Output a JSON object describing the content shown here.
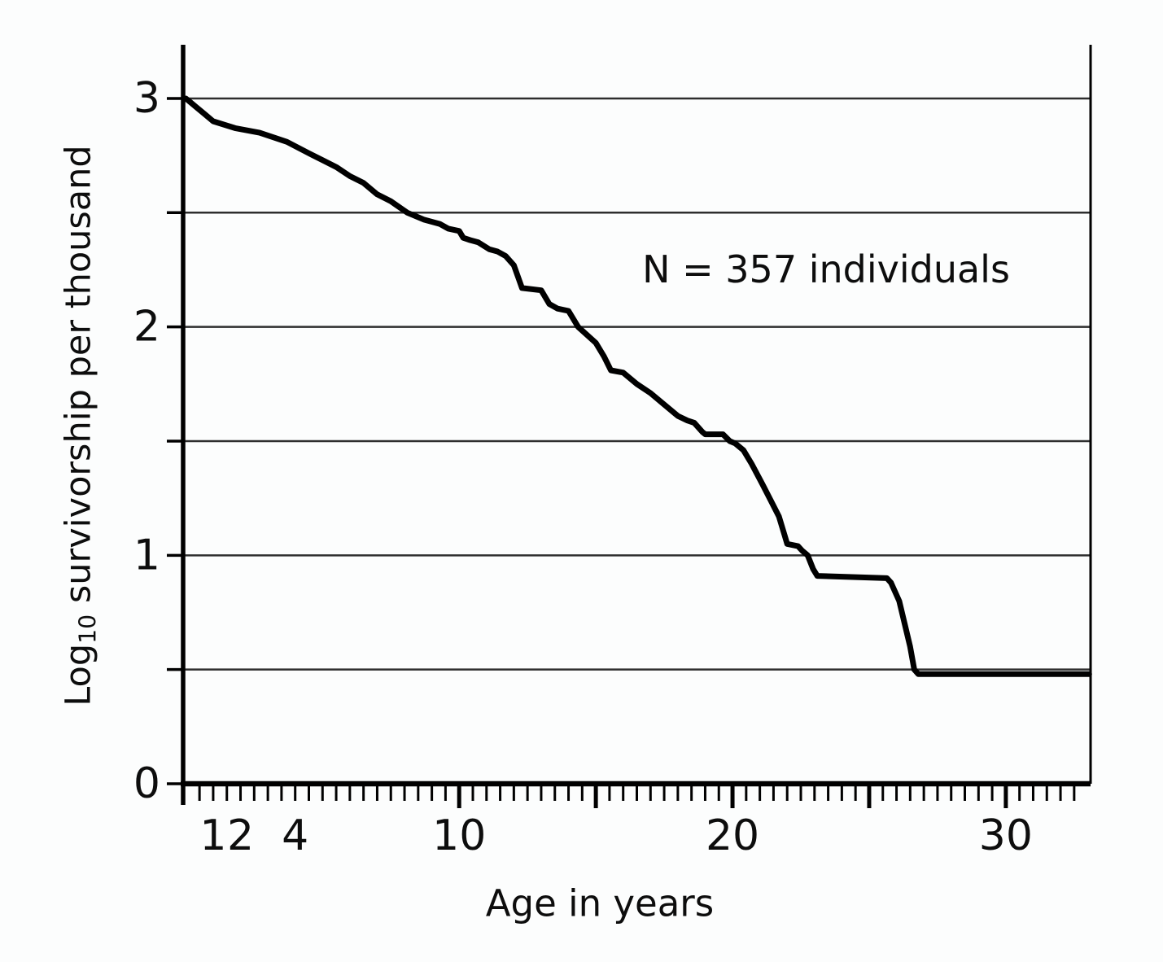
{
  "figure": {
    "background": "#fcfdfd",
    "annotation": "N = 357 individuals",
    "xlabel": "Age in years",
    "ylabel_parts": {
      "prefix": "Log",
      "sub": "10",
      "suffix": " survivorship per thousand"
    }
  },
  "chart_data": {
    "type": "line",
    "title": "",
    "xlabel": "Age in years",
    "ylabel": "Log10 survivorship per thousand",
    "annotation": "N = 357 individuals",
    "legend": "none",
    "grid": "horizontal gridlines every 0.5",
    "line_color": "#000000",
    "grid_color": "#2e2e2e",
    "xlim": [
      -0.1,
      33.1
    ],
    "ylim": [
      0,
      3.235
    ],
    "x_ticks_labeled": [
      1,
      2,
      4,
      10,
      20,
      30
    ],
    "x_major_ticks": [
      10,
      15,
      20,
      25,
      30
    ],
    "x_minor_tick_step": 0.5,
    "x_minor_tick_max": 32.5,
    "y_tick_labels": [
      0,
      1,
      2,
      3
    ],
    "y_tick_values": [
      0,
      0.5,
      1,
      1.5,
      2,
      2.5,
      3
    ],
    "y_gridlines": [
      0.5,
      1,
      1.5,
      2,
      2.5,
      3
    ],
    "series": [
      {
        "name": "Log10 survivorship per thousand",
        "points": [
          [
            0,
            3.0
          ],
          [
            0.2,
            2.98
          ],
          [
            0.4,
            2.96
          ],
          [
            0.7,
            2.93
          ],
          [
            1,
            2.9
          ],
          [
            1.8,
            2.87
          ],
          [
            2.7,
            2.85
          ],
          [
            3.2,
            2.83
          ],
          [
            3.7,
            2.81
          ],
          [
            4.5,
            2.76
          ],
          [
            5,
            2.73
          ],
          [
            5.5,
            2.7
          ],
          [
            6,
            2.66
          ],
          [
            6.5,
            2.63
          ],
          [
            7,
            2.58
          ],
          [
            7.5,
            2.55
          ],
          [
            8.1,
            2.5
          ],
          [
            8.7,
            2.47
          ],
          [
            9.3,
            2.45
          ],
          [
            9.6,
            2.43
          ],
          [
            10,
            2.42
          ],
          [
            10.15,
            2.39
          ],
          [
            10.4,
            2.38
          ],
          [
            10.7,
            2.37
          ],
          [
            11.1,
            2.34
          ],
          [
            11.4,
            2.33
          ],
          [
            11.7,
            2.31
          ],
          [
            12,
            2.27
          ],
          [
            12.3,
            2.17
          ],
          [
            13,
            2.16
          ],
          [
            13.3,
            2.1
          ],
          [
            13.6,
            2.08
          ],
          [
            14,
            2.07
          ],
          [
            14.35,
            2.0
          ],
          [
            15,
            1.93
          ],
          [
            15.3,
            1.87
          ],
          [
            15.55,
            1.81
          ],
          [
            16,
            1.8
          ],
          [
            16.5,
            1.75
          ],
          [
            17,
            1.71
          ],
          [
            17.5,
            1.66
          ],
          [
            18,
            1.61
          ],
          [
            18.35,
            1.59
          ],
          [
            18.6,
            1.58
          ],
          [
            18.9,
            1.54
          ],
          [
            19,
            1.53
          ],
          [
            19.65,
            1.53
          ],
          [
            19.9,
            1.5
          ],
          [
            20.1,
            1.49
          ],
          [
            20.4,
            1.46
          ],
          [
            20.7,
            1.4
          ],
          [
            21.1,
            1.31
          ],
          [
            21.4,
            1.24
          ],
          [
            21.7,
            1.17
          ],
          [
            21.9,
            1.09
          ],
          [
            22,
            1.05
          ],
          [
            22.4,
            1.04
          ],
          [
            22.55,
            1.02
          ],
          [
            22.75,
            1.0
          ],
          [
            22.95,
            0.94
          ],
          [
            23.1,
            0.91
          ],
          [
            25.65,
            0.9
          ],
          [
            25.8,
            0.88
          ],
          [
            26.1,
            0.8
          ],
          [
            26.3,
            0.7
          ],
          [
            26.5,
            0.6
          ],
          [
            26.65,
            0.5
          ],
          [
            26.8,
            0.48
          ],
          [
            33.05,
            0.48
          ]
        ]
      }
    ]
  }
}
